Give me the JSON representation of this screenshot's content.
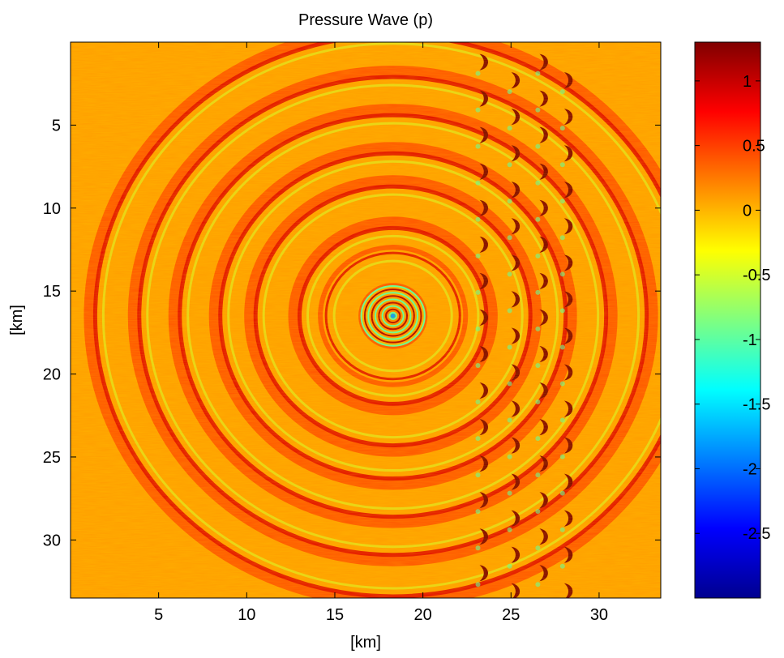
{
  "chart_data": {
    "type": "heatmap",
    "title": "Pressure Wave (p)",
    "xlabel": "[km]",
    "ylabel": "[km]",
    "xlim": [
      0,
      33.5
    ],
    "ylim": [
      33.5,
      0
    ],
    "y_reversed": true,
    "xticks": [
      5,
      10,
      15,
      20,
      25,
      30
    ],
    "yticks": [
      5,
      10,
      15,
      20,
      25,
      30
    ],
    "colormap": "jet",
    "clim": [
      -3.0,
      1.3
    ],
    "colorbar_ticks": [
      1,
      0.5,
      0,
      -0.5,
      -1,
      -1.5,
      -2,
      -2.5
    ],
    "colorbar_tick_labels": [
      "1",
      "0.5",
      "0",
      "-0.5",
      "-1",
      "-1.5",
      "-2",
      "-2.5"
    ],
    "source_center_km": [
      18.3,
      16.5
    ],
    "ring_radii_km": [
      1.5,
      3.8,
      5.3,
      7.8,
      9.8,
      12.1,
      14.4,
      16.9
    ],
    "scatterer_columns_x_km": [
      23.4,
      25.2,
      26.8,
      28.2
    ],
    "scatterer_spacing_km": 2.2,
    "background_value": 0.1,
    "ring_value": 0.5,
    "scatterer_value": 1.3,
    "trough_value": -1.0,
    "colors": {
      "jet_dark_red": "#800000",
      "jet_red": "#ff0000",
      "jet_orange": "#ff9900",
      "jet_yellow": "#ffff00",
      "jet_cyan": "#00ffff",
      "jet_blue": "#0000ff",
      "jet_dark_blue": "#000080"
    }
  }
}
